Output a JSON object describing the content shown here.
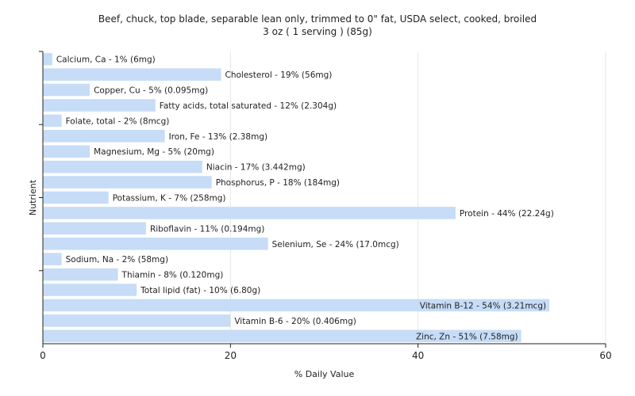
{
  "chart_data": {
    "type": "bar",
    "orientation": "horizontal",
    "title": "Beef, chuck, top blade, separable lean only, trimmed to 0\" fat, USDA select, cooked, broiled",
    "subtitle": "3 oz ( 1 serving ) (85g)",
    "xlabel": "% Daily Value",
    "ylabel": "Nutrient",
    "xlim": [
      0,
      60
    ],
    "xticks": [
      0,
      20,
      40,
      60
    ],
    "grid": true,
    "bar_color": "#c6dcf7",
    "categories": [
      "Calcium, Ca",
      "Cholesterol",
      "Copper, Cu",
      "Fatty acids, total saturated",
      "Folate, total",
      "Iron, Fe",
      "Magnesium, Mg",
      "Niacin",
      "Phosphorus, P",
      "Potassium, K",
      "Protein",
      "Riboflavin",
      "Selenium, Se",
      "Sodium, Na",
      "Thiamin",
      "Total lipid (fat)",
      "Vitamin B-12",
      "Vitamin B-6",
      "Zinc, Zn"
    ],
    "values": [
      1,
      19,
      5,
      12,
      2,
      13,
      5,
      17,
      18,
      7,
      44,
      11,
      24,
      2,
      8,
      10,
      54,
      20,
      51
    ],
    "labels": [
      "Calcium, Ca - 1% (6mg)",
      "Cholesterol - 19% (56mg)",
      "Copper, Cu - 5% (0.095mg)",
      "Fatty acids, total saturated - 12% (2.304g)",
      "Folate, total - 2% (8mcg)",
      "Iron, Fe - 13% (2.38mg)",
      "Magnesium, Mg - 5% (20mg)",
      "Niacin - 17% (3.442mg)",
      "Phosphorus, P - 18% (184mg)",
      "Potassium, K - 7% (258mg)",
      "Protein - 44% (22.24g)",
      "Riboflavin - 11% (0.194mg)",
      "Selenium, Se - 24% (17.0mcg)",
      "Sodium, Na - 2% (58mg)",
      "Thiamin - 8% (0.120mg)",
      "Total lipid (fat) - 10% (6.80g)",
      "Vitamin B-12 - 54% (3.21mcg)",
      "Vitamin B-6 - 20% (0.406mg)",
      "Zinc, Zn - 51% (7.58mg)"
    ]
  }
}
